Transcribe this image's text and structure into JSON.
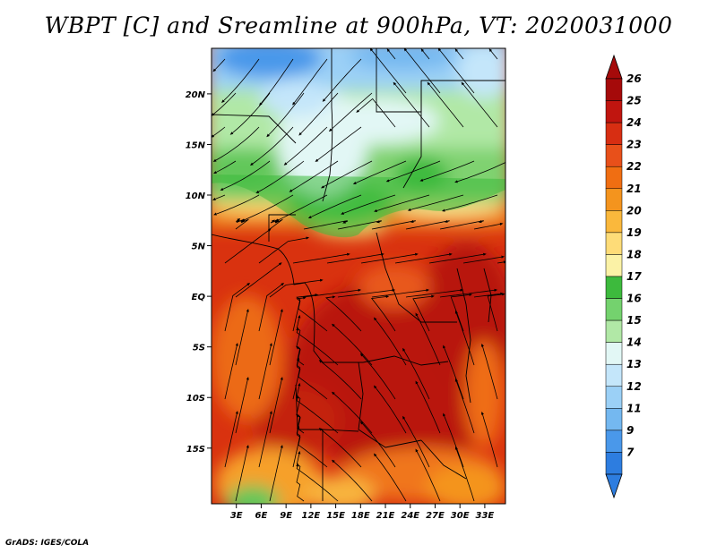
{
  "title": "WBPT [C] and Sreamline at 900hPa, VT: 2020031000",
  "credit": "GrADS: IGES/COLA",
  "axes": {
    "lon_min": 0,
    "lon_max": 35.5,
    "lat_min": -20.5,
    "lat_max": 24.5,
    "lat_ticks": [
      {
        "value": 20,
        "label": "20N"
      },
      {
        "value": 15,
        "label": "15N"
      },
      {
        "value": 10,
        "label": "10N"
      },
      {
        "value": 5,
        "label": "5N"
      },
      {
        "value": 0,
        "label": "EQ"
      },
      {
        "value": -5,
        "label": "5S"
      },
      {
        "value": -10,
        "label": "10S"
      },
      {
        "value": -15,
        "label": "15S"
      }
    ],
    "lon_ticks": [
      {
        "value": 3,
        "label": "3E"
      },
      {
        "value": 6,
        "label": "6E"
      },
      {
        "value": 9,
        "label": "9E"
      },
      {
        "value": 12,
        "label": "12E"
      },
      {
        "value": 15,
        "label": "15E"
      },
      {
        "value": 18,
        "label": "18E"
      },
      {
        "value": 21,
        "label": "21E"
      },
      {
        "value": 24,
        "label": "24E"
      },
      {
        "value": 27,
        "label": "27E"
      },
      {
        "value": 30,
        "label": "30E"
      },
      {
        "value": 33,
        "label": "33E"
      }
    ]
  },
  "colorbar": {
    "levels": [
      {
        "label": "26",
        "color": "#a50a0a"
      },
      {
        "label": "25",
        "color": "#c0150f"
      },
      {
        "label": "24",
        "color": "#d72e12"
      },
      {
        "label": "23",
        "color": "#e8501a"
      },
      {
        "label": "22",
        "color": "#f06e12"
      },
      {
        "label": "21",
        "color": "#f4941e"
      },
      {
        "label": "20",
        "color": "#fab83c"
      },
      {
        "label": "19",
        "color": "#fedc78"
      },
      {
        "label": "18",
        "color": "#fbf2a6"
      },
      {
        "label": "17",
        "color": "#3dba3d"
      },
      {
        "label": "16",
        "color": "#74d26e"
      },
      {
        "label": "15",
        "color": "#b1e8a6"
      },
      {
        "label": "14",
        "color": "#e2f7f5"
      },
      {
        "label": "13",
        "color": "#c4e6fa"
      },
      {
        "label": "12",
        "color": "#9bd0f6"
      },
      {
        "label": "11",
        "color": "#74b8f0"
      },
      {
        "label": "9",
        "color": "#4a98ea"
      },
      {
        "label": "7",
        "color": "#2d7de0"
      }
    ],
    "over_color": "#a50a0a",
    "under_color": "#2d7de0"
  }
}
